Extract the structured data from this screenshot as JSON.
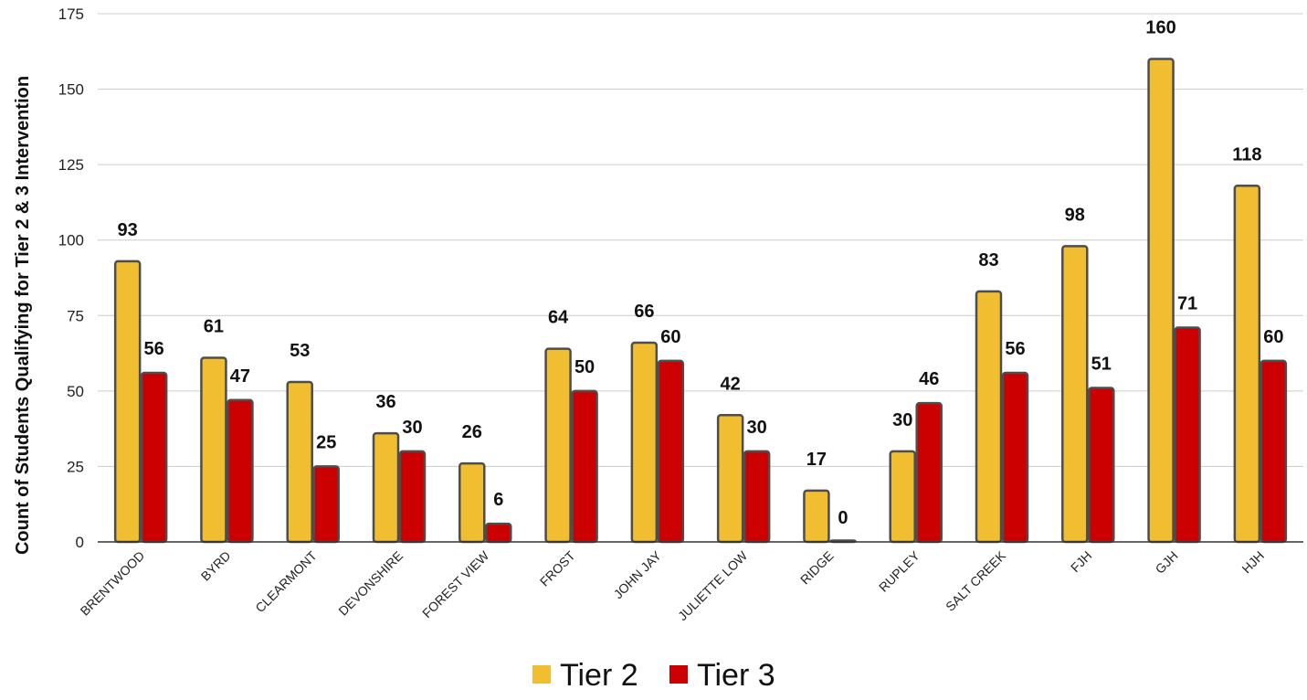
{
  "chart_data": {
    "type": "bar",
    "title": "",
    "xlabel": "",
    "ylabel": "Count of Students Qualifying for Tier 2 & 3 Intervention",
    "ylim": [
      0,
      175
    ],
    "yticks": [
      0,
      25,
      50,
      75,
      100,
      125,
      150,
      175
    ],
    "grid": true,
    "legend_position": "bottom",
    "categories": [
      "BRENTWOOD",
      "BYRD",
      "CLEARMONT",
      "DEVONSHIRE",
      "FOREST VIEW",
      "FROST",
      "JOHN JAY",
      "JULIETTE LOW",
      "RIDGE",
      "RUPLEY",
      "SALT CREEK",
      "FJH",
      "GJH",
      "HJH"
    ],
    "series": [
      {
        "name": "Tier 2",
        "color": "#F0BE30",
        "values": [
          93,
          61,
          53,
          36,
          26,
          64,
          66,
          42,
          17,
          30,
          83,
          98,
          160,
          118
        ]
      },
      {
        "name": "Tier 3",
        "color": "#CC0000",
        "values": [
          56,
          47,
          25,
          30,
          6,
          50,
          60,
          30,
          0,
          46,
          56,
          51,
          71,
          60
        ]
      }
    ]
  }
}
